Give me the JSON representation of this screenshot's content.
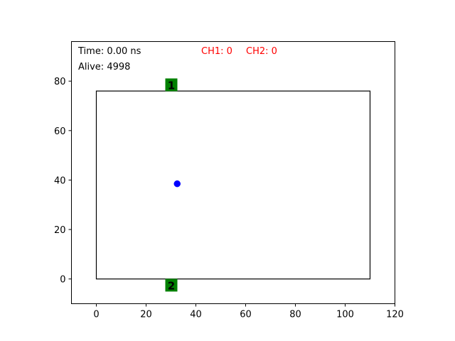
{
  "chart_data": {
    "type": "scatter",
    "title": "",
    "xlabel": "",
    "ylabel": "",
    "xlim": [
      -10,
      120
    ],
    "ylim": [
      -10,
      96
    ],
    "x_ticks": [
      0,
      20,
      40,
      60,
      80,
      100,
      120
    ],
    "y_ticks": [
      0,
      20,
      40,
      60,
      80
    ],
    "grid": false,
    "legend": "none",
    "annotations": {
      "time": "Time: 0.00 ns",
      "alive": "Alive: 4998",
      "ch1": "CH1: 0",
      "ch2": "CH2: 0"
    },
    "detector_box": {
      "x_min": 0,
      "x_max": 110,
      "y_min": 0,
      "y_max": 76
    },
    "channels": [
      {
        "label": "1",
        "x": 30,
        "y": 78.5
      },
      {
        "label": "2",
        "x": 30,
        "y": -2.5
      }
    ],
    "series": [
      {
        "points": [
          {
            "x": 32.5,
            "y": 38.5
          }
        ]
      }
    ],
    "colors": {
      "points": "#0000ff",
      "channel_bg": "#008000",
      "counter_text": "#ff0000",
      "box": "#000000"
    }
  }
}
